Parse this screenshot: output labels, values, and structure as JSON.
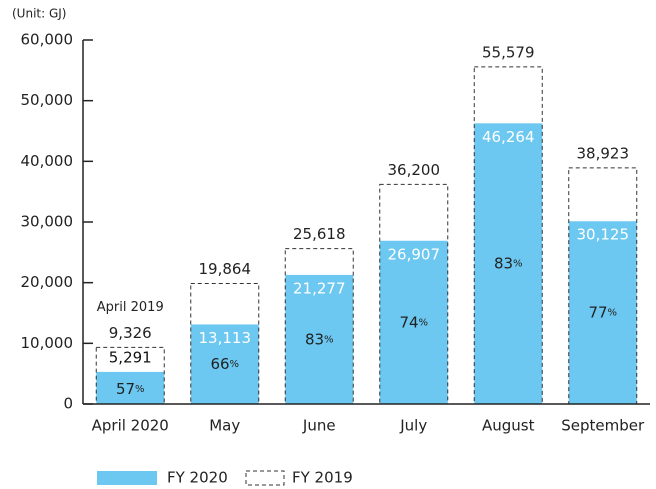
{
  "chart_data": {
    "type": "bar",
    "unit_label": "(Unit: GJ)",
    "annotation": "April 2019",
    "categories": [
      "April 2020",
      "May",
      "June",
      "July",
      "August",
      "September"
    ],
    "series": [
      {
        "name": "FY 2020",
        "color": "#6cc8f0",
        "values": [
          5291,
          13113,
          21277,
          26907,
          46264,
          30125
        ],
        "value_labels": [
          "5,291",
          "13,113",
          "21,277",
          "26,907",
          "46,264",
          "30,125"
        ]
      },
      {
        "name": "FY 2019",
        "color": "#333333",
        "values": [
          9326,
          19864,
          25618,
          36200,
          55579,
          38923
        ],
        "value_labels": [
          "9,326",
          "19,864",
          "25,618",
          "36,200",
          "55,579",
          "38,923"
        ]
      }
    ],
    "ratios": [
      57,
      66,
      83,
      74,
      83,
      77
    ],
    "ratio_unit": "%",
    "ylim": [
      0,
      60000
    ],
    "yticks": [
      0,
      {
        "value": 10000,
        "label": "10,000"
      },
      {
        "value": 20000,
        "label": "20,000"
      },
      {
        "value": 30000,
        "label": "30,000"
      },
      {
        "value": 40000,
        "label": "40,000"
      },
      {
        "value": 50000,
        "label": "50,000"
      },
      {
        "value": 60000,
        "label": "60,000"
      }
    ]
  }
}
